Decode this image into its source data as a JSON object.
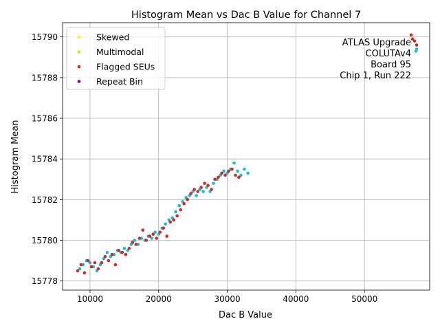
{
  "chart_data": {
    "type": "scatter",
    "title": "Histogram Mean vs Dac B Value for Channel 7",
    "xlabel": "Dac B Value",
    "ylabel": "Histogram Mean",
    "xlim": [
      6000,
      59500
    ],
    "ylim": [
      15777.55,
      15790.7
    ],
    "xticks": [
      10000,
      20000,
      30000,
      40000,
      50000
    ],
    "yticks": [
      15778,
      15780,
      15782,
      15784,
      15786,
      15788,
      15790
    ],
    "grid": true,
    "legend_position": "top-left",
    "legend": [
      {
        "label": "Skewed",
        "color": "#ffff00"
      },
      {
        "label": "Multimodal",
        "color": "#aaff00"
      },
      {
        "label": "Flagged SEUs",
        "color": "#d62728"
      },
      {
        "label": "Repeat Bin",
        "color": "#800080"
      }
    ],
    "annotation": [
      "ATLAS Upgrade",
      "COLUTAv4",
      "Board 95",
      "Chip 1, Run 222"
    ],
    "series": [
      {
        "color": "#17becf",
        "points": [
          [
            8500,
            15778.6
          ],
          [
            9000,
            15778.8
          ],
          [
            9500,
            15779.0
          ],
          [
            10000,
            15778.9
          ],
          [
            10500,
            15778.7
          ],
          [
            11000,
            15778.5
          ],
          [
            11500,
            15778.8
          ],
          [
            12000,
            15779.1
          ],
          [
            12500,
            15779.4
          ],
          [
            13000,
            15779.2
          ],
          [
            13500,
            15779.3
          ],
          [
            14000,
            15779.5
          ],
          [
            14500,
            15779.4
          ],
          [
            15000,
            15779.6
          ],
          [
            15500,
            15779.5
          ],
          [
            16000,
            15779.8
          ],
          [
            16500,
            15780.0
          ],
          [
            17000,
            15779.8
          ],
          [
            17500,
            15780.1
          ],
          [
            18000,
            15780.0
          ],
          [
            18500,
            15780.2
          ],
          [
            19000,
            15780.1
          ],
          [
            19500,
            15780.4
          ],
          [
            20000,
            15780.3
          ],
          [
            20500,
            15780.6
          ],
          [
            21000,
            15780.8
          ],
          [
            21500,
            15781.0
          ],
          [
            22000,
            15781.1
          ],
          [
            22500,
            15781.4
          ],
          [
            23000,
            15781.7
          ],
          [
            23500,
            15781.9
          ],
          [
            24000,
            15782.1
          ],
          [
            24500,
            15782.2
          ],
          [
            25000,
            15782.4
          ],
          [
            25500,
            15782.2
          ],
          [
            26000,
            15782.5
          ],
          [
            26500,
            15782.4
          ],
          [
            27000,
            15782.6
          ],
          [
            27500,
            15782.4
          ],
          [
            28000,
            15782.8
          ],
          [
            28500,
            15783.0
          ],
          [
            29000,
            15783.2
          ],
          [
            29500,
            15783.4
          ],
          [
            30000,
            15783.3
          ],
          [
            30500,
            15783.5
          ],
          [
            31000,
            15783.8
          ],
          [
            31500,
            15783.4
          ],
          [
            32000,
            15783.2
          ],
          [
            32500,
            15783.5
          ],
          [
            33000,
            15783.3
          ],
          [
            57500,
            15789.3
          ],
          [
            57600,
            15789.4
          ]
        ]
      },
      {
        "name": "Flagged SEUs",
        "color": "#d62728",
        "points": [
          [
            8200,
            15778.5
          ],
          [
            8700,
            15778.8
          ],
          [
            9200,
            15778.4
          ],
          [
            9700,
            15779.0
          ],
          [
            10200,
            15778.7
          ],
          [
            10700,
            15778.9
          ],
          [
            11200,
            15778.6
          ],
          [
            11700,
            15778.9
          ],
          [
            12200,
            15779.2
          ],
          [
            12700,
            15779.0
          ],
          [
            13200,
            15779.3
          ],
          [
            13700,
            15778.8
          ],
          [
            14200,
            15779.5
          ],
          [
            14700,
            15779.4
          ],
          [
            15200,
            15779.3
          ],
          [
            15700,
            15779.6
          ],
          [
            16200,
            15779.9
          ],
          [
            16700,
            15779.8
          ],
          [
            17200,
            15780.1
          ],
          [
            17700,
            15780.5
          ],
          [
            18200,
            15780.0
          ],
          [
            18700,
            15780.2
          ],
          [
            19200,
            15780.3
          ],
          [
            19700,
            15780.1
          ],
          [
            20200,
            15780.4
          ],
          [
            20700,
            15780.6
          ],
          [
            21200,
            15780.2
          ],
          [
            21700,
            15780.9
          ],
          [
            22200,
            15781.0
          ],
          [
            22700,
            15781.2
          ],
          [
            23200,
            15781.5
          ],
          [
            23700,
            15781.8
          ],
          [
            24200,
            15782.0
          ],
          [
            24700,
            15782.3
          ],
          [
            25200,
            15782.5
          ],
          [
            25700,
            15782.4
          ],
          [
            26200,
            15782.6
          ],
          [
            26700,
            15782.8
          ],
          [
            27200,
            15782.7
          ],
          [
            27700,
            15782.5
          ],
          [
            28200,
            15783.0
          ],
          [
            28700,
            15783.1
          ],
          [
            29200,
            15783.3
          ],
          [
            29700,
            15783.2
          ],
          [
            30200,
            15783.4
          ],
          [
            30700,
            15783.5
          ],
          [
            31200,
            15783.2
          ],
          [
            31700,
            15783.1
          ],
          [
            56800,
            15790.1
          ],
          [
            57000,
            15789.9
          ],
          [
            57300,
            15789.8
          ],
          [
            57600,
            15789.6
          ]
        ]
      }
    ]
  }
}
